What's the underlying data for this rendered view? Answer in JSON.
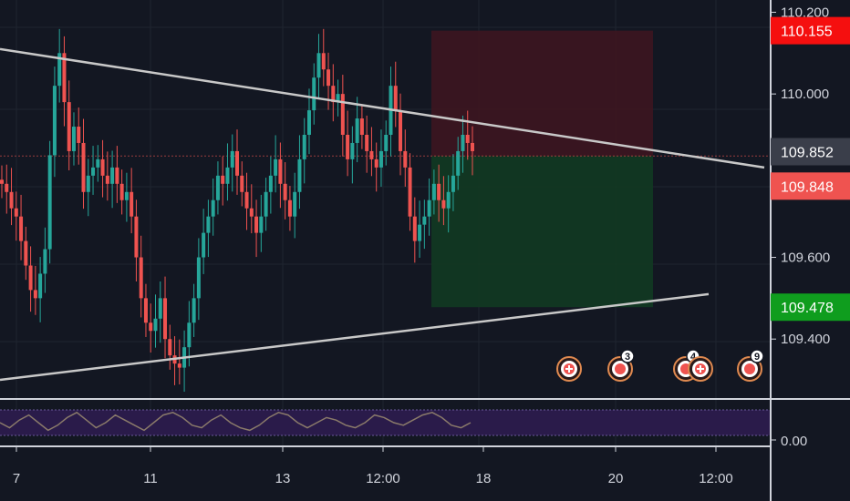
{
  "colors": {
    "background": "#131722",
    "grid": "#1f2430",
    "up": "#26a69a",
    "down": "#ef5350",
    "trendline": "#c8c8c8",
    "stop_zone": "#3d1520",
    "target_zone": "#123a22",
    "oscillator_band": "#2a1b4a",
    "oscillator_line": "#8a7a6a",
    "tag_stop": "#f50f0f",
    "tag_current": "#3a3e4a",
    "tag_bid": "#ef5350",
    "tag_target": "#0f9d1e"
  },
  "chart_data": {
    "type": "candlestick",
    "price_axis": {
      "ticks": [
        "110.200",
        "110.000",
        "109.600",
        "109.400"
      ],
      "tick_values": [
        110.2,
        110.0,
        109.6,
        109.4
      ],
      "range": [
        109.26,
        110.23
      ]
    },
    "time_axis": {
      "ticks": [
        "7",
        "11",
        "13",
        "12:00",
        "18",
        "20",
        "12:00"
      ]
    },
    "price_tags": [
      {
        "label": "110.155",
        "value": 110.155,
        "role": "stop"
      },
      {
        "label": "109.852",
        "value": 109.852,
        "role": "current"
      },
      {
        "label": "109.848",
        "value": 109.848,
        "role": "bid"
      },
      {
        "label": "109.478",
        "value": 109.478,
        "role": "target"
      }
    ],
    "position": {
      "entry": 109.848,
      "stop": 110.155,
      "target": 109.478
    },
    "trendlines": [
      {
        "name": "upper",
        "from": 110.11,
        "to": 109.82
      },
      {
        "name": "lower",
        "from": 109.3,
        "to": 109.51
      }
    ],
    "closes": [
      109.78,
      109.76,
      109.72,
      109.7,
      109.64,
      109.58,
      109.52,
      109.5,
      109.56,
      109.62,
      109.85,
      110.02,
      110.1,
      109.98,
      109.86,
      109.92,
      109.88,
      109.76,
      109.8,
      109.82,
      109.84,
      109.8,
      109.78,
      109.82,
      109.78,
      109.74,
      109.76,
      109.7,
      109.6,
      109.5,
      109.44,
      109.42,
      109.45,
      109.5,
      109.4,
      109.36,
      109.34,
      109.33,
      109.38,
      109.44,
      109.5,
      109.6,
      109.66,
      109.7,
      109.74,
      109.8,
      109.78,
      109.82,
      109.86,
      109.8,
      109.76,
      109.72,
      109.7,
      109.66,
      109.7,
      109.76,
      109.8,
      109.84,
      109.78,
      109.74,
      109.7,
      109.76,
      109.84,
      109.9,
      109.96,
      110.04,
      110.1,
      110.06,
      110.02,
      109.98,
      110.0,
      109.9,
      109.84,
      109.88,
      109.94,
      109.9,
      109.86,
      109.84,
      109.82,
      109.86,
      109.9,
      110.02,
      109.96,
      109.86,
      109.82,
      109.7,
      109.64,
      109.68,
      109.7,
      109.74,
      109.78,
      109.74,
      109.72,
      109.76,
      109.8,
      109.86,
      109.9,
      109.88,
      109.86
    ],
    "oscillator": {
      "ticks": [
        "0.00"
      ],
      "values": [
        0.5,
        0.3,
        0.6,
        0.8,
        0.5,
        0.2,
        0.4,
        0.7,
        0.9,
        0.6,
        0.3,
        0.5,
        0.8,
        0.6,
        0.4,
        0.2,
        0.5,
        0.8,
        0.9,
        0.7,
        0.4,
        0.3,
        0.6,
        0.8,
        0.5,
        0.3,
        0.2,
        0.4,
        0.7,
        0.9,
        0.8,
        0.5,
        0.3,
        0.5,
        0.7,
        0.6,
        0.4,
        0.3,
        0.5,
        0.8,
        0.7,
        0.5,
        0.4,
        0.6,
        0.8,
        0.9,
        0.7,
        0.4,
        0.3,
        0.5
      ]
    },
    "events": [
      {
        "count": "",
        "icon": "plus"
      },
      {
        "count": "3",
        "icon": "multi"
      },
      {
        "count": "4",
        "icon": "multi"
      },
      {
        "count": "",
        "icon": "plus"
      },
      {
        "count": "9",
        "icon": "multi"
      }
    ]
  }
}
